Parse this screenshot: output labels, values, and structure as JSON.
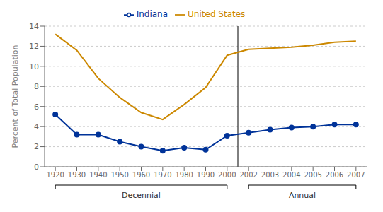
{
  "chart_data": {
    "type": "line",
    "ylabel": "Percent of Total Population",
    "categories": [
      "1920",
      "1930",
      "1940",
      "1950",
      "1960",
      "1970",
      "1980",
      "1990",
      "2000",
      "2002",
      "2003",
      "2004",
      "2005",
      "2006",
      "2007"
    ],
    "series": [
      {
        "name": "Indiana",
        "color": "#003399",
        "marker": "circle",
        "line_style": "solid",
        "values": [
          5.2,
          3.2,
          3.2,
          2.5,
          2.0,
          1.6,
          1.9,
          1.7,
          3.1,
          3.4,
          3.7,
          3.9,
          4.0,
          4.2,
          4.2
        ]
      },
      {
        "name": "United States",
        "color": "#CC8800",
        "marker": "none",
        "line_style": "solid",
        "values": [
          13.2,
          11.6,
          8.8,
          6.9,
          5.4,
          4.7,
          6.2,
          7.9,
          11.1,
          11.7,
          11.8,
          11.9,
          12.1,
          12.4,
          12.5
        ]
      }
    ],
    "ylim": [
      0,
      14
    ],
    "yticks": [
      0,
      2,
      4,
      6,
      8,
      10,
      12,
      14
    ],
    "grid": "y",
    "legend": "top",
    "annotations": [
      {
        "text": "Decennial",
        "from": "1920",
        "to": "2000"
      },
      {
        "text": "Annual",
        "from": "2002",
        "to": "2007"
      }
    ]
  }
}
